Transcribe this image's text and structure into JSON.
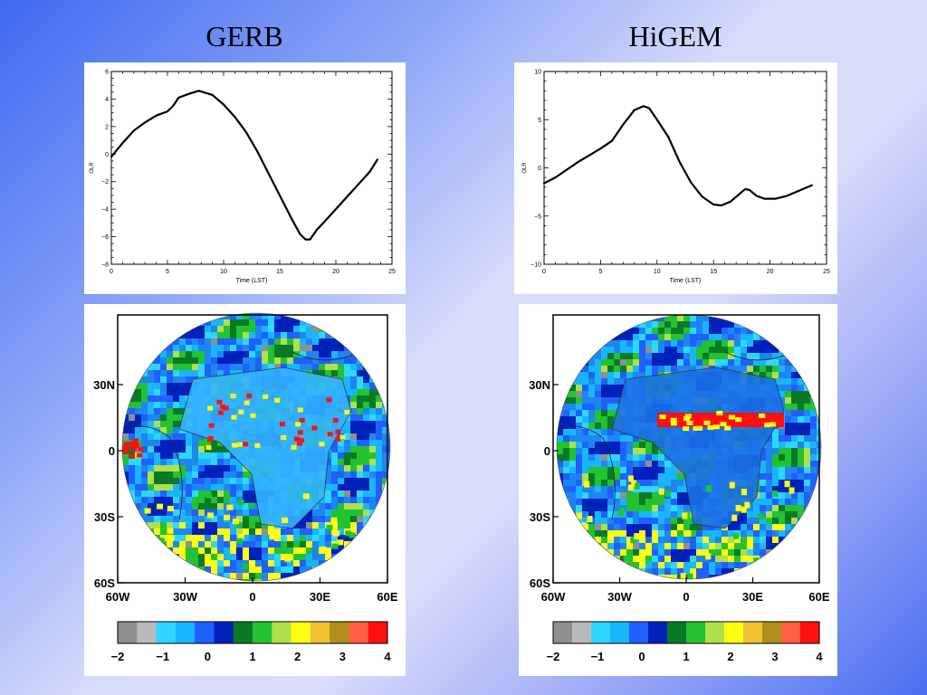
{
  "titles": {
    "left": "GERB",
    "right": "HiGEM"
  },
  "chart_data": [
    {
      "type": "line",
      "panel": "GERB",
      "xlabel": "Time (LST)",
      "ylabel": "OLR",
      "xlim": [
        0,
        25
      ],
      "ylim": [
        -8,
        6
      ],
      "xticks": [
        0,
        5,
        10,
        15,
        20,
        25
      ],
      "yticks": [
        -8,
        -6,
        -4,
        -2,
        0,
        2,
        4,
        6
      ],
      "grid": false,
      "series": [
        {
          "x": [
            0,
            1,
            2,
            3,
            4,
            5,
            5.5,
            6,
            7,
            7.8,
            9,
            10,
            11,
            12,
            13,
            14,
            15,
            16,
            16.8,
            17.3,
            17.7,
            18.3,
            19,
            20,
            21,
            22,
            23,
            23.7
          ],
          "y": [
            -0.2,
            0.8,
            1.7,
            2.3,
            2.8,
            3.1,
            3.5,
            4.1,
            4.4,
            4.6,
            4.3,
            3.6,
            2.7,
            1.6,
            0.2,
            -1.4,
            -3.0,
            -4.6,
            -5.8,
            -6.2,
            -6.2,
            -5.5,
            -4.9,
            -4.0,
            -3.1,
            -2.2,
            -1.3,
            -0.4
          ]
        }
      ]
    },
    {
      "type": "line",
      "panel": "HiGEM",
      "xlabel": "Time (LST)",
      "ylabel": "OLR",
      "xlim": [
        0,
        25
      ],
      "ylim": [
        -10,
        10
      ],
      "xticks": [
        0,
        5,
        10,
        15,
        20,
        25
      ],
      "yticks": [
        -10,
        -5,
        0,
        5,
        10
      ],
      "grid": false,
      "series": [
        {
          "x": [
            0,
            1,
            2,
            3,
            4,
            5,
            6,
            7,
            8,
            8.8,
            9.3,
            10,
            11,
            12,
            13,
            14,
            15,
            15.7,
            16.5,
            17.2,
            17.8,
            18.2,
            18.8,
            19.5,
            20.5,
            21.5,
            22.5,
            23.7
          ],
          "y": [
            -1.6,
            -1.0,
            -0.2,
            0.6,
            1.3,
            2.0,
            2.8,
            4.5,
            6.0,
            6.4,
            6.2,
            5.0,
            3.2,
            0.6,
            -1.5,
            -3.0,
            -3.8,
            -3.9,
            -3.5,
            -2.8,
            -2.2,
            -2.3,
            -2.9,
            -3.2,
            -3.2,
            -2.9,
            -2.4,
            -1.8
          ]
        }
      ]
    }
  ],
  "maps": {
    "lat_labels": [
      "30N",
      "0",
      "30S",
      "60S"
    ],
    "lon_labels": [
      "60W",
      "30W",
      "0",
      "30E",
      "60E"
    ],
    "colorbar_ticks": [
      "−2",
      "−1",
      "0",
      "1",
      "2",
      "3",
      "4"
    ],
    "colorbar_colors": [
      "#8f8f8f",
      "#b9b9b9",
      "#2fd6ff",
      "#19b6ff",
      "#2060ff",
      "#0022bb",
      "#0a7a28",
      "#22c232",
      "#b0e04a",
      "#ffff10",
      "#f0c030",
      "#b0901a",
      "#ff6040",
      "#ff1010"
    ],
    "left": {
      "name": "GERB"
    },
    "right": {
      "name": "HiGEM"
    }
  }
}
